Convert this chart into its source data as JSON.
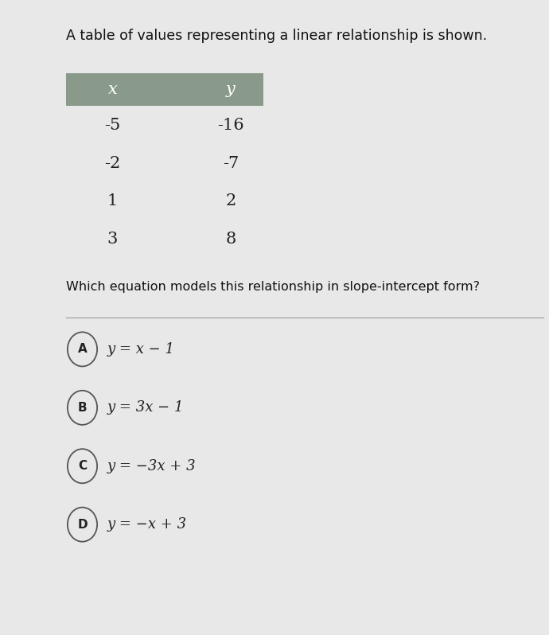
{
  "title": "A table of values representing a linear relationship is shown.",
  "table_header": [
    "x",
    "y"
  ],
  "table_data": [
    [
      "-5",
      "-16"
    ],
    [
      "-2",
      "-7"
    ],
    [
      "1",
      "2"
    ],
    [
      "3",
      "8"
    ]
  ],
  "question": "Which equation models this relationship in slope-intercept form?",
  "choices": [
    [
      "A",
      "y = x − 1"
    ],
    [
      "B",
      "y = 3x − 1"
    ],
    [
      "C",
      "y = −3x + 3"
    ],
    [
      "D",
      "y = −x + 3"
    ]
  ],
  "bg_color": "#e8e8e8",
  "header_bg": "#8a9a8a",
  "header_text_color": "#ffffff",
  "table_text_color": "#222222",
  "title_color": "#111111",
  "question_color": "#111111",
  "choice_color": "#222222",
  "circle_edge_color": "#555555",
  "divider_color": "#aaaaaa",
  "left_bar_color": "#2a2a2a"
}
